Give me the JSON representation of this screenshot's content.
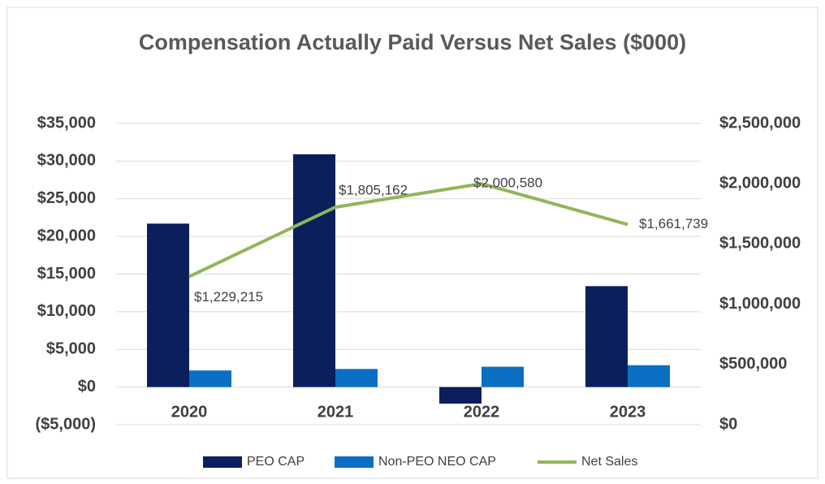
{
  "chart_data": {
    "type": "bar",
    "title": "Compensation Actually Paid Versus Net Sales ($000)",
    "categories": [
      "2020",
      "2021",
      "2022",
      "2023"
    ],
    "series": [
      {
        "name": "PEO CAP",
        "type": "bar",
        "color": "#0b1f5c",
        "values": [
          21700,
          30900,
          -2200,
          13400
        ]
      },
      {
        "name": "Non-PEO NEO CAP",
        "type": "bar",
        "color": "#0a6fc2",
        "values": [
          2200,
          2400,
          2700,
          2900
        ]
      },
      {
        "name": "Net Sales",
        "type": "line",
        "axis": "y2",
        "color": "#92b55a",
        "values": [
          1229215,
          1805162,
          2000580,
          1661739
        ],
        "value_labels": [
          "$1,229,215",
          "$1,805,162",
          "$2,000,580",
          "$1,661,739"
        ]
      }
    ],
    "ylim": [
      -5000,
      35000
    ],
    "yticks": [
      {
        "value": -5000,
        "label": "($5,000)"
      },
      {
        "value": 0,
        "label": "$0"
      },
      {
        "value": 5000,
        "label": "$5,000"
      },
      {
        "value": 10000,
        "label": "$10,000"
      },
      {
        "value": 15000,
        "label": "$15,000"
      },
      {
        "value": 20000,
        "label": "$20,000"
      },
      {
        "value": 25000,
        "label": "$25,000"
      },
      {
        "value": 30000,
        "label": "$30,000"
      },
      {
        "value": 35000,
        "label": "$35,000"
      }
    ],
    "y2lim": [
      0,
      2500000
    ],
    "y2ticks": [
      {
        "value": 0,
        "label": "$0"
      },
      {
        "value": 500000,
        "label": "$500,000"
      },
      {
        "value": 1000000,
        "label": "$1,000,000"
      },
      {
        "value": 1500000,
        "label": "$1,500,000"
      },
      {
        "value": 2000000,
        "label": "$2,000,000"
      },
      {
        "value": 2500000,
        "label": "$2,500,000"
      }
    ],
    "grid": true,
    "legend": "bottom"
  }
}
